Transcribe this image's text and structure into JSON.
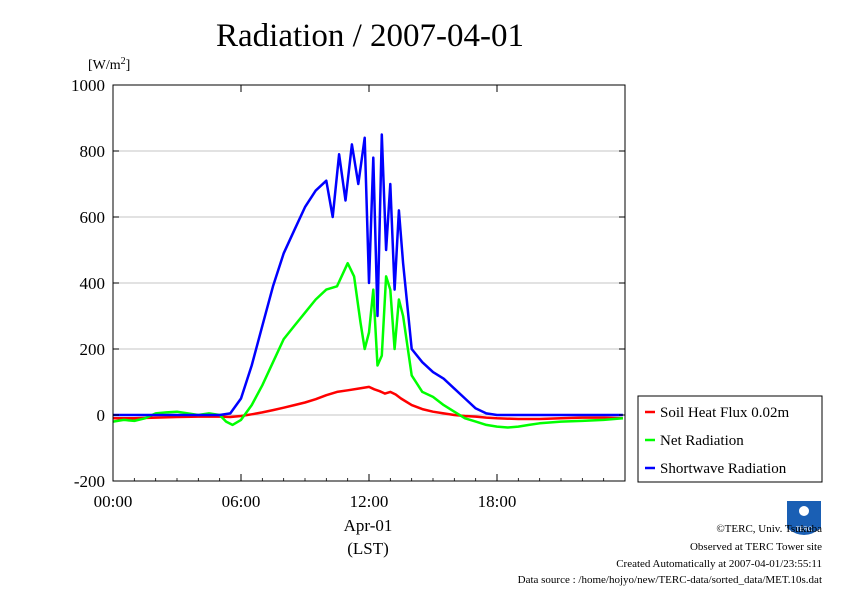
{
  "chart_data": {
    "type": "line",
    "title": "Radiation / 2007-04-01",
    "unit_label_main": "[W/m",
    "unit_label_sup": "2",
    "unit_label_close": "]",
    "ylim": [
      -200,
      1000
    ],
    "yticks": [
      -200,
      0,
      200,
      400,
      600,
      800,
      1000
    ],
    "ytick_labels": [
      "-200",
      "0",
      "200",
      "400",
      "600",
      "800",
      "1000"
    ],
    "xlim": [
      0,
      24
    ],
    "xticks": [
      0,
      6,
      12,
      18
    ],
    "xtick_labels": [
      "00:00",
      "06:00",
      "12:00",
      "18:00"
    ],
    "xlabel_date": "Apr-01",
    "xlabel_unit": "(LST)",
    "grid": true,
    "legend_position": "bottom-right, outside plot",
    "series": [
      {
        "name": "Soil Heat Flux 0.02m",
        "color": "#ff0000",
        "x": [
          0,
          1,
          2,
          3,
          4,
          5,
          5.5,
          6,
          6.5,
          7,
          7.5,
          8,
          8.5,
          9,
          9.5,
          10,
          10.5,
          11,
          11.5,
          12,
          12.25,
          12.5,
          12.75,
          13,
          13.25,
          13.5,
          14,
          14.5,
          15,
          15.5,
          16,
          16.5,
          17,
          17.5,
          18,
          19,
          20,
          21,
          22,
          23,
          23.9
        ],
        "y": [
          -10,
          -10,
          -8,
          -6,
          -5,
          -5,
          -6,
          -3,
          2,
          8,
          15,
          22,
          30,
          38,
          48,
          60,
          70,
          75,
          80,
          85,
          78,
          72,
          65,
          70,
          62,
          50,
          30,
          18,
          10,
          5,
          0,
          -3,
          -5,
          -8,
          -10,
          -12,
          -12,
          -10,
          -8,
          -8,
          -10
        ]
      },
      {
        "name": "Net Radiation",
        "color": "#00ff00",
        "x": [
          0,
          0.5,
          1,
          1.5,
          2,
          2.5,
          3,
          3.5,
          4,
          4.5,
          5,
          5.3,
          5.6,
          6,
          6.5,
          7,
          7.5,
          8,
          8.5,
          9,
          9.5,
          10,
          10.5,
          11,
          11.3,
          11.6,
          11.8,
          12,
          12.2,
          12.4,
          12.6,
          12.8,
          13,
          13.2,
          13.4,
          13.6,
          14,
          14.5,
          15,
          15.5,
          16,
          16.5,
          17,
          17.5,
          18,
          18.5,
          19,
          19.5,
          20,
          21,
          22,
          23,
          23.9
        ],
        "y": [
          -20,
          -15,
          -18,
          -10,
          5,
          8,
          10,
          5,
          0,
          5,
          0,
          -20,
          -30,
          -15,
          30,
          90,
          160,
          230,
          270,
          310,
          350,
          380,
          390,
          460,
          420,
          280,
          200,
          250,
          380,
          150,
          180,
          420,
          380,
          200,
          350,
          300,
          120,
          70,
          55,
          30,
          10,
          -10,
          -20,
          -30,
          -35,
          -38,
          -35,
          -30,
          -25,
          -20,
          -18,
          -15,
          -10
        ]
      },
      {
        "name": "Shortwave Radiation",
        "color": "#0000ff",
        "x": [
          0,
          1,
          2,
          3,
          4,
          5,
          5.5,
          6,
          6.5,
          7,
          7.5,
          8,
          8.5,
          9,
          9.5,
          10,
          10.3,
          10.6,
          10.9,
          11.2,
          11.5,
          11.8,
          12,
          12.2,
          12.4,
          12.6,
          12.8,
          13,
          13.2,
          13.4,
          13.6,
          14,
          14.5,
          15,
          15.5,
          16,
          16.5,
          17,
          17.5,
          18,
          19,
          20,
          21,
          22,
          23,
          23.9
        ],
        "y": [
          0,
          0,
          0,
          0,
          0,
          0,
          5,
          50,
          150,
          270,
          390,
          490,
          560,
          630,
          680,
          710,
          600,
          790,
          650,
          820,
          700,
          840,
          400,
          780,
          300,
          850,
          500,
          700,
          380,
          620,
          460,
          200,
          160,
          130,
          110,
          80,
          50,
          20,
          5,
          0,
          0,
          0,
          0,
          0,
          0,
          0
        ]
      }
    ]
  },
  "credits": {
    "copyright": "©TERC, Univ. Tsukuba",
    "observed": "Observed at TERC Tower site",
    "created": "Created Automatically at 2007-04-01/23:55:11",
    "source": "Data source : /home/hojyo/new/TERC-data/sorted_data/MET.10s.dat",
    "logo_text": "TERC"
  }
}
